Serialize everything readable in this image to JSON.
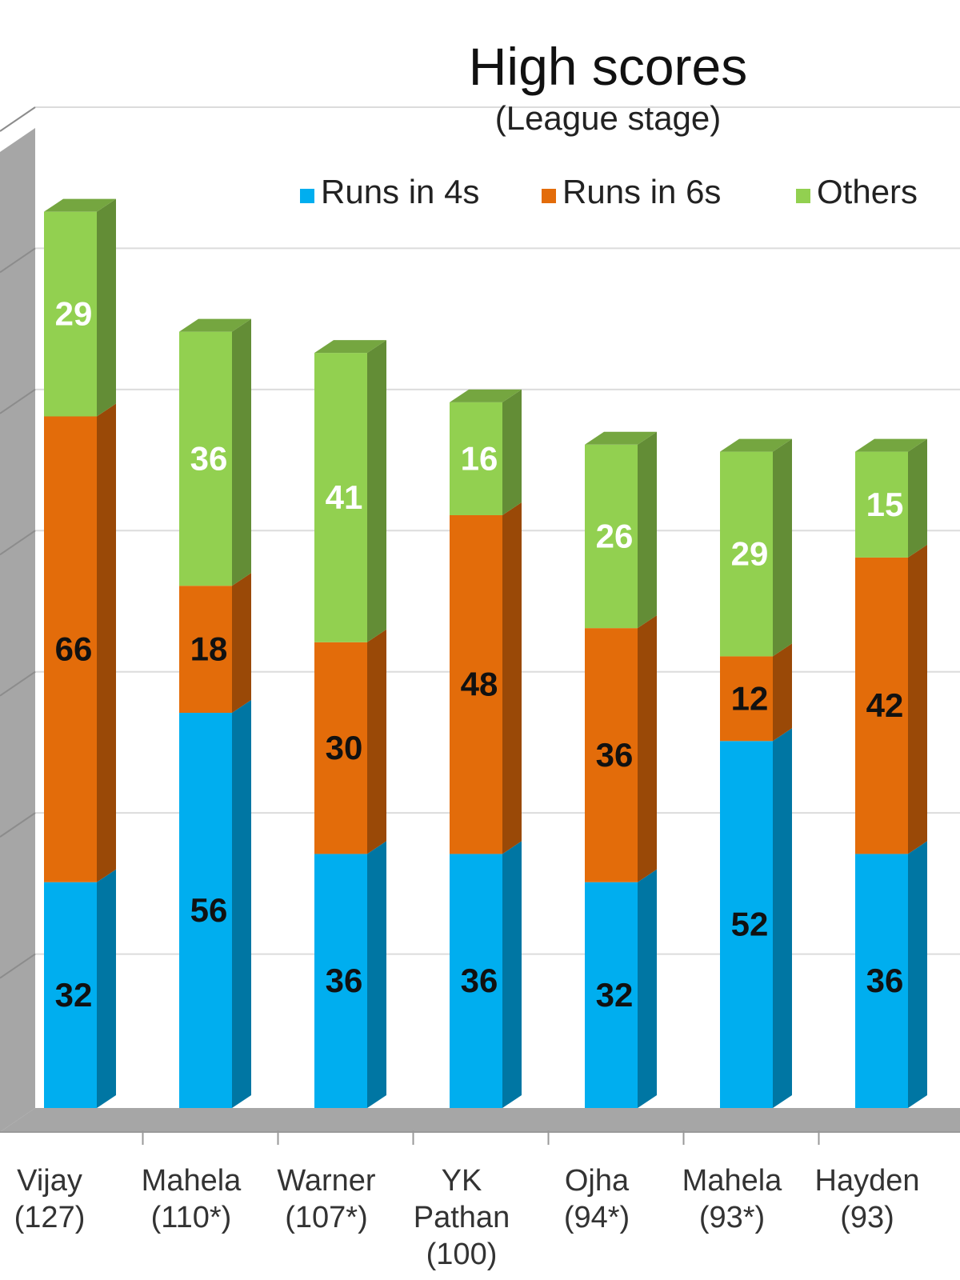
{
  "chart_data": {
    "type": "bar",
    "stacked": true,
    "three_d": true,
    "title": "High scores",
    "subtitle": "(League stage)",
    "categories": [
      [
        "Vijay",
        "(127)"
      ],
      [
        "Mahela",
        "(110*)"
      ],
      [
        "Warner",
        "(107*)"
      ],
      [
        "YK",
        "Pathan",
        "(100)"
      ],
      [
        "Ojha",
        "(94*)"
      ],
      [
        "Mahela",
        "(93*)"
      ],
      [
        "Hayden",
        "(93)"
      ]
    ],
    "series": [
      {
        "name": "Runs in 4s",
        "color": "#00aeef",
        "label_color": "#111111",
        "values": [
          32,
          56,
          36,
          36,
          32,
          52,
          36
        ]
      },
      {
        "name": "Runs in 6s",
        "color": "#e36c0a",
        "label_color": "#111111",
        "values": [
          66,
          18,
          30,
          48,
          36,
          12,
          42
        ]
      },
      {
        "name": "Others",
        "color": "#92d050",
        "label_color": "#ffffff",
        "values": [
          29,
          36,
          41,
          16,
          26,
          29,
          15
        ]
      }
    ],
    "ylim": [
      0,
      140
    ],
    "grid": true,
    "legend_position": "top-right",
    "xlabel": "",
    "ylabel": ""
  }
}
